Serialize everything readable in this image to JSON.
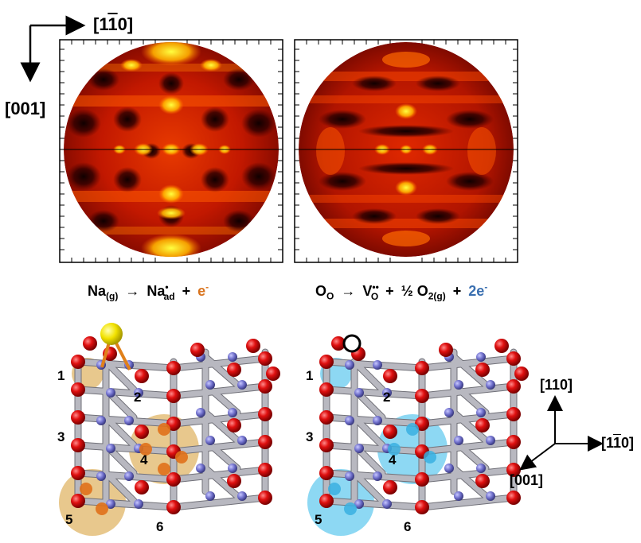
{
  "orientation_top": {
    "horizontal_axis": "[1",
    "horizontal_axis_bar": "1",
    "horizontal_axis_end": "0]",
    "vertical_axis": "[001]"
  },
  "equation_left": {
    "reactant": "Na",
    "reactant_sub": "(g)",
    "product": "Na",
    "product_sup": "•",
    "product_sub": "ad",
    "plus": "+",
    "electron": "e",
    "electron_sup": "-",
    "electron_color": "#d9741f"
  },
  "equation_right": {
    "reactant": "O",
    "reactant_sub": "O",
    "product": "V",
    "product_sup": "••",
    "product_sub": "O",
    "plus1": "+",
    "half": "½",
    "gas": "O",
    "gas_sub": "2(g)",
    "plus2": "+",
    "electron": "2e",
    "electron_sup": "-",
    "electron_color": "#3a6fb0"
  },
  "site_labels_left": [
    "1",
    "2",
    "3",
    "4",
    "5",
    "6"
  ],
  "site_labels_right": [
    "1",
    "2",
    "3",
    "4",
    "5",
    "6"
  ],
  "orientation_bottom": {
    "up": "[110]",
    "right_pre": "[1",
    "right_bar": "1",
    "right_end": "0]",
    "down_left": "[001]"
  },
  "colors": {
    "sodium_highlight": "#d9a441",
    "vacancy_highlight": "#5cc8ee",
    "oxygen_atom": "#d41414",
    "metal_atom": "#7b7bd0",
    "sodium_atom": "#f2e200",
    "heatmap_hot": "#ffee00",
    "heatmap_mid": "#e03000",
    "heatmap_dark": "#200000"
  }
}
